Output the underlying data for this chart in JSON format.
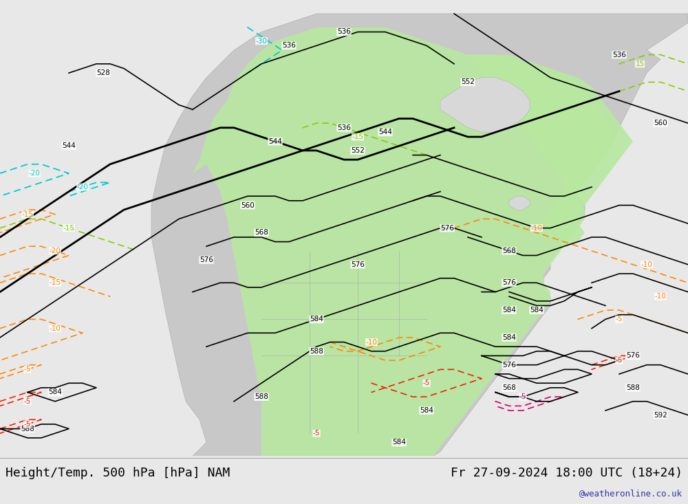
{
  "title_left": "Height/Temp. 500 hPa [hPa] NAM",
  "title_right": "Fr 27-09-2024 18:00 UTC (18+24)",
  "watermark": "@weatheronline.co.uk",
  "bg_color": "#e8e8e8",
  "map_bg": "#e8e8e8",
  "land_gray": "#c8c8c8",
  "green_fill": "#b8e8a0",
  "figure_width": 10.0,
  "figure_height": 7.33,
  "dpi": 100,
  "watermark_color": "#3333aa",
  "font_family": "DejaVu Sans"
}
